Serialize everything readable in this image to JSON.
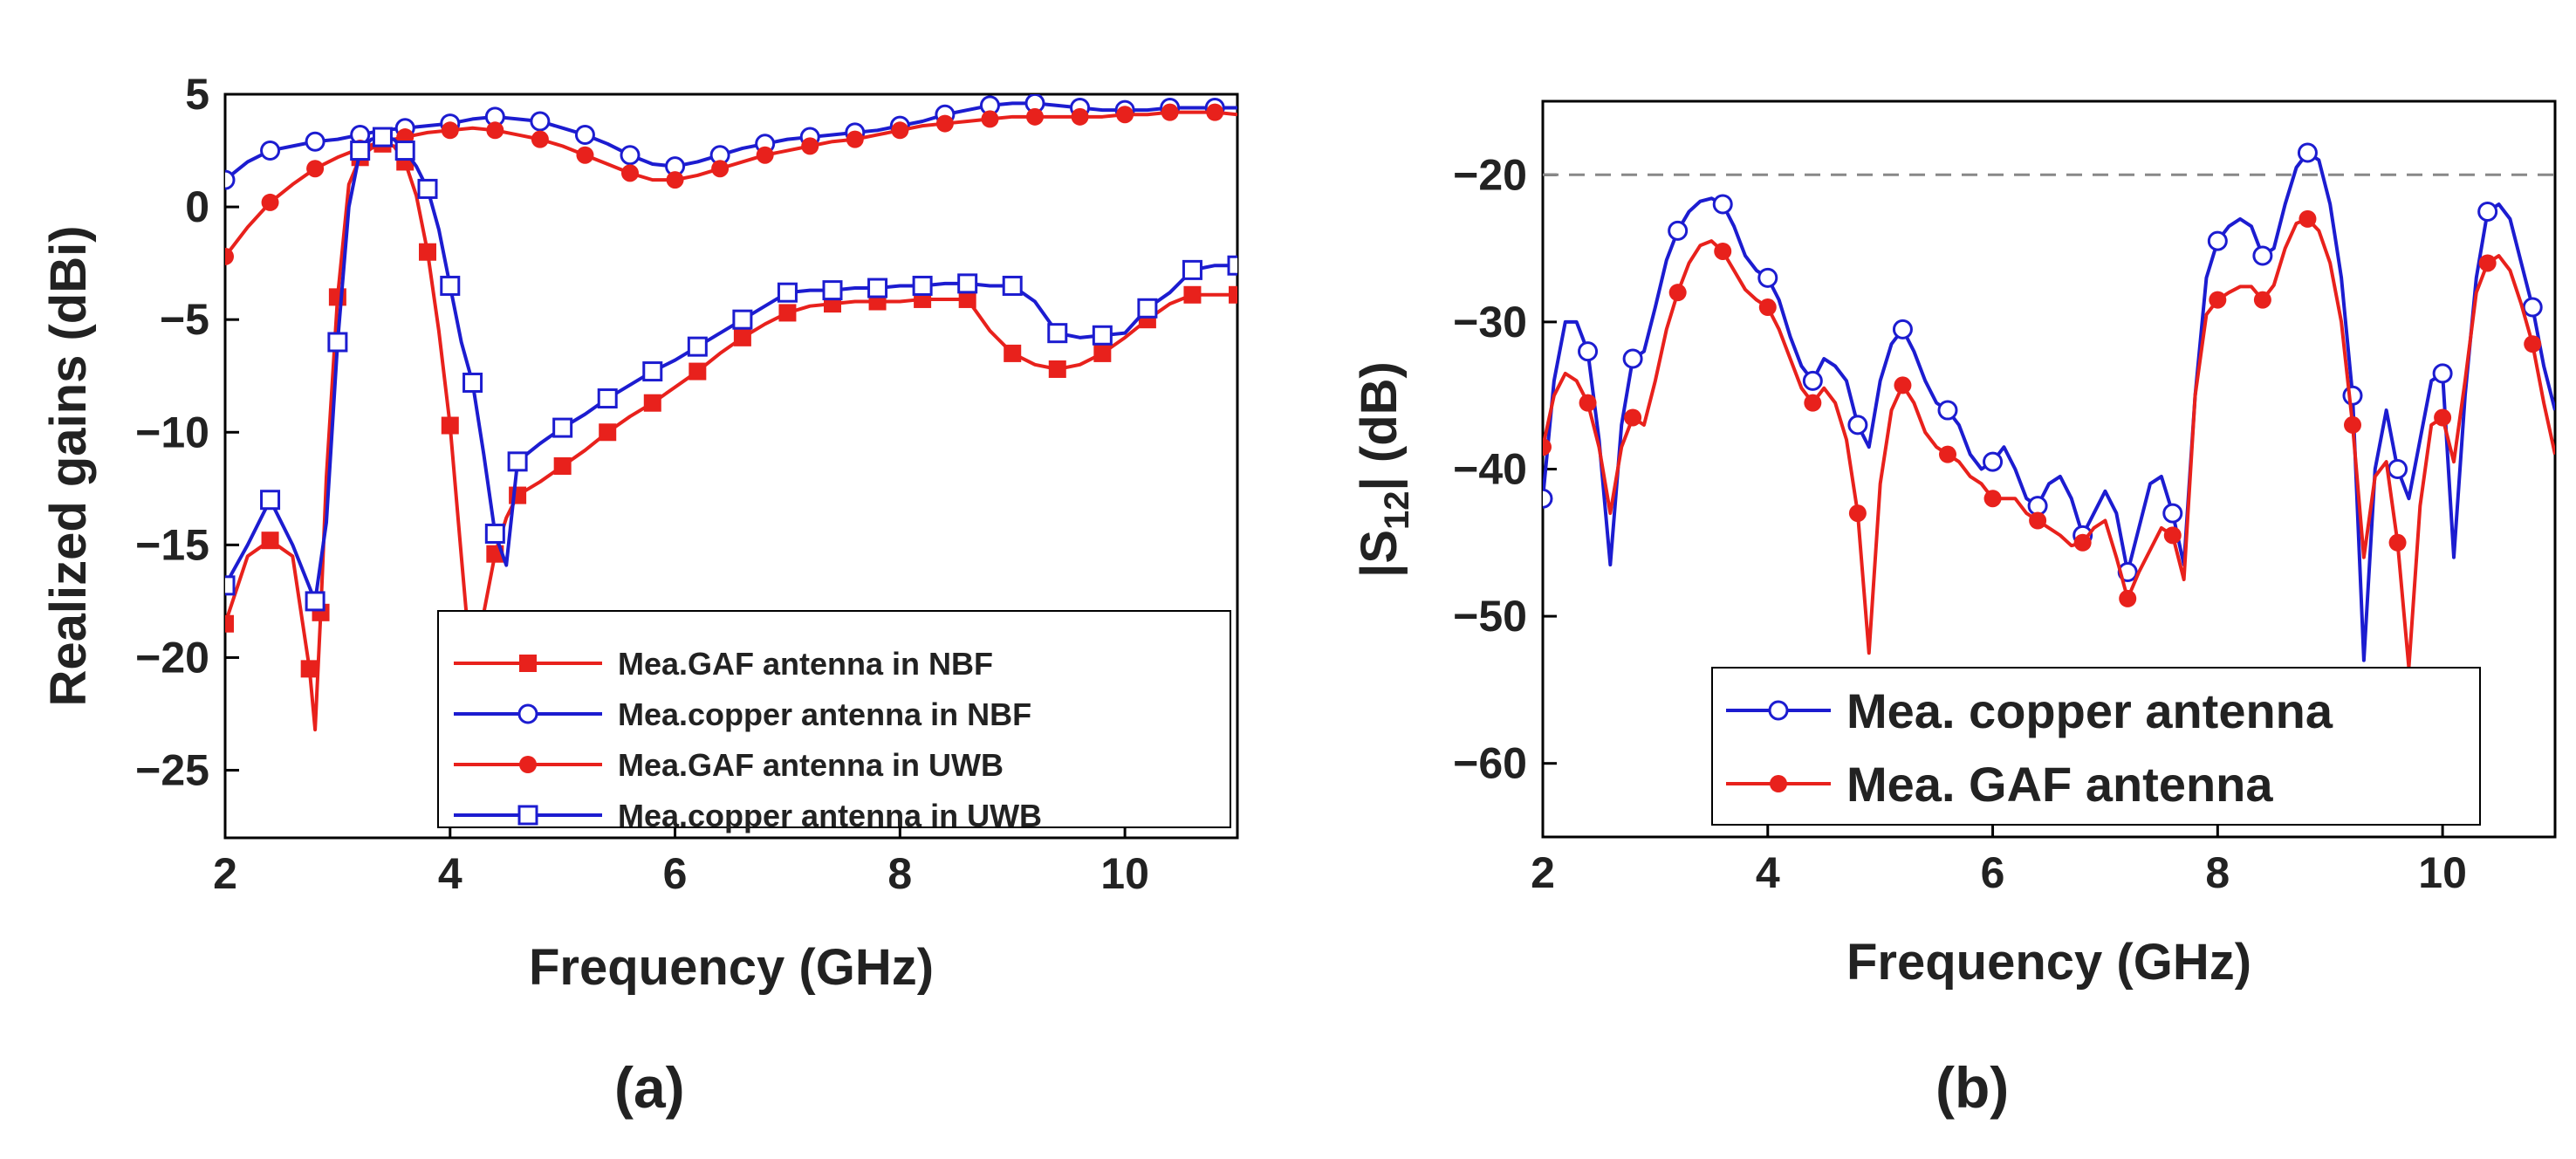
{
  "panels": {
    "a": {
      "caption": "(a)"
    },
    "b": {
      "caption": "(b)"
    }
  },
  "chart_data": [
    {
      "id": "a",
      "type": "line",
      "xlabel": "Frequency (GHz)",
      "ylabel": "Realized gains (dBi)",
      "xlim": [
        2,
        11
      ],
      "ylim": [
        -28,
        5
      ],
      "xticks": [
        2,
        4,
        6,
        8,
        10
      ],
      "yticks": [
        5,
        0,
        -5,
        -10,
        -15,
        -20,
        -25
      ],
      "grid": false,
      "legend_position": "bottom-right",
      "series": [
        {
          "name": "Mea.GAF antenna in NBF",
          "color": "#e8211c",
          "marker": "filled-square",
          "x": [
            2,
            2.2,
            2.4,
            2.6,
            2.75,
            2.8,
            2.85,
            2.9,
            3.0,
            3.1,
            3.2,
            3.3,
            3.4,
            3.5,
            3.6,
            3.7,
            3.8,
            3.9,
            4.0,
            4.1,
            4.2,
            4.3,
            4.4,
            4.5,
            4.6,
            4.8,
            5.0,
            5.2,
            5.4,
            5.6,
            5.8,
            6.0,
            6.2,
            6.4,
            6.6,
            6.8,
            7.0,
            7.2,
            7.4,
            7.6,
            7.8,
            8.0,
            8.2,
            8.4,
            8.6,
            8.8,
            9.0,
            9.2,
            9.4,
            9.6,
            9.8,
            10.0,
            10.2,
            10.4,
            10.6,
            10.8,
            11.0
          ],
          "y": [
            -18.5,
            -15.5,
            -14.8,
            -15.5,
            -20.5,
            -23.2,
            -18.0,
            -12.0,
            -4.0,
            1.0,
            2.2,
            2.6,
            2.8,
            2.7,
            2.0,
            0.5,
            -2.0,
            -5.5,
            -9.7,
            -15.5,
            -21.2,
            -18.0,
            -15.4,
            -13.8,
            -12.8,
            -12.2,
            -11.5,
            -10.8,
            -10.0,
            -9.3,
            -8.7,
            -8.0,
            -7.3,
            -6.5,
            -5.8,
            -5.2,
            -4.7,
            -4.4,
            -4.3,
            -4.2,
            -4.2,
            -4.2,
            -4.1,
            -4.1,
            -4.1,
            -5.5,
            -6.5,
            -7.0,
            -7.2,
            -7.0,
            -6.5,
            -5.8,
            -5.0,
            -4.3,
            -3.9,
            -3.9,
            -3.9
          ]
        },
        {
          "name": "Mea.copper antenna in NBF",
          "color": "#1c1cd0",
          "marker": "open-circle",
          "x": [
            2,
            2.2,
            2.4,
            2.6,
            2.8,
            3.0,
            3.2,
            3.4,
            3.6,
            3.8,
            4.0,
            4.2,
            4.4,
            4.6,
            4.8,
            5.0,
            5.2,
            5.4,
            5.6,
            5.8,
            6.0,
            6.2,
            6.4,
            6.6,
            6.8,
            7.0,
            7.2,
            7.4,
            7.6,
            7.8,
            8.0,
            8.2,
            8.4,
            8.6,
            8.8,
            9.0,
            9.2,
            9.4,
            9.6,
            9.8,
            10.0,
            10.2,
            10.4,
            10.6,
            10.8,
            11.0
          ],
          "y": [
            1.2,
            2.0,
            2.5,
            2.7,
            2.9,
            3.0,
            3.2,
            3.4,
            3.5,
            3.6,
            3.7,
            3.9,
            4.0,
            3.9,
            3.8,
            3.5,
            3.2,
            2.8,
            2.3,
            1.9,
            1.8,
            2.0,
            2.3,
            2.6,
            2.8,
            3.0,
            3.1,
            3.2,
            3.3,
            3.4,
            3.6,
            3.8,
            4.1,
            4.3,
            4.5,
            4.6,
            4.6,
            4.5,
            4.4,
            4.3,
            4.3,
            4.3,
            4.4,
            4.4,
            4.4,
            4.4
          ]
        },
        {
          "name": "Mea.GAF antenna in UWB",
          "color": "#e8211c",
          "marker": "filled-circle",
          "x": [
            2,
            2.2,
            2.4,
            2.6,
            2.8,
            3.0,
            3.2,
            3.4,
            3.6,
            3.8,
            4.0,
            4.2,
            4.4,
            4.6,
            4.8,
            5.0,
            5.2,
            5.4,
            5.6,
            5.8,
            6.0,
            6.2,
            6.4,
            6.6,
            6.8,
            7.0,
            7.2,
            7.4,
            7.6,
            7.8,
            8.0,
            8.2,
            8.4,
            8.6,
            8.8,
            9.0,
            9.2,
            9.4,
            9.6,
            9.8,
            10.0,
            10.2,
            10.4,
            10.6,
            10.8,
            11.0
          ],
          "y": [
            -2.2,
            -0.9,
            0.2,
            1.0,
            1.7,
            2.2,
            2.6,
            2.9,
            3.1,
            3.3,
            3.4,
            3.5,
            3.4,
            3.2,
            3.0,
            2.7,
            2.3,
            1.9,
            1.5,
            1.2,
            1.2,
            1.4,
            1.7,
            2.0,
            2.3,
            2.5,
            2.7,
            2.9,
            3.0,
            3.2,
            3.4,
            3.6,
            3.7,
            3.8,
            3.9,
            4.0,
            4.0,
            4.0,
            4.0,
            4.0,
            4.1,
            4.1,
            4.2,
            4.2,
            4.2,
            4.1
          ]
        },
        {
          "name": "Mea.copper antenna in UWB",
          "color": "#1c1cd0",
          "marker": "open-square",
          "x": [
            2,
            2.2,
            2.4,
            2.6,
            2.8,
            2.9,
            3.0,
            3.1,
            3.2,
            3.3,
            3.4,
            3.5,
            3.6,
            3.7,
            3.8,
            3.9,
            4.0,
            4.1,
            4.2,
            4.3,
            4.4,
            4.5,
            4.6,
            4.8,
            5.0,
            5.2,
            5.4,
            5.6,
            5.8,
            6.0,
            6.2,
            6.4,
            6.6,
            6.8,
            7.0,
            7.2,
            7.4,
            7.6,
            7.8,
            8.0,
            8.2,
            8.4,
            8.6,
            8.8,
            9.0,
            9.2,
            9.4,
            9.6,
            9.8,
            10.0,
            10.2,
            10.4,
            10.6,
            10.8,
            11.0
          ],
          "y": [
            -16.8,
            -15.0,
            -13.0,
            -15.0,
            -17.5,
            -14.0,
            -6.0,
            0.0,
            2.5,
            3.0,
            3.1,
            3.0,
            2.5,
            1.8,
            0.8,
            -1.0,
            -3.5,
            -6.0,
            -7.8,
            -11.0,
            -14.5,
            -15.9,
            -11.3,
            -10.5,
            -9.8,
            -9.2,
            -8.5,
            -7.9,
            -7.3,
            -6.8,
            -6.2,
            -5.6,
            -5.0,
            -4.4,
            -3.8,
            -3.7,
            -3.7,
            -3.6,
            -3.6,
            -3.5,
            -3.5,
            -3.4,
            -3.4,
            -3.5,
            -3.5,
            -4.2,
            -5.6,
            -5.8,
            -5.7,
            -5.6,
            -4.5,
            -3.8,
            -2.8,
            -2.6,
            -2.6
          ]
        }
      ]
    },
    {
      "id": "b",
      "type": "line",
      "xlabel": "Frequency (GHz)",
      "ylabel_main": "|S",
      "ylabel_sub": "12",
      "ylabel_tail": "| (dB)",
      "xlim": [
        2,
        11
      ],
      "ylim": [
        -65,
        -15
      ],
      "xticks": [
        2,
        4,
        6,
        8,
        10
      ],
      "yticks": [
        -20,
        -30,
        -40,
        -50,
        -60
      ],
      "grid": false,
      "reference_line": {
        "y": -20,
        "style": "dashed",
        "color": "#888888"
      },
      "legend_position": "bottom-right",
      "series": [
        {
          "name": "Mea. copper antenna",
          "color": "#1c1cd0",
          "marker": "open-circle",
          "x": [
            2.0,
            2.1,
            2.2,
            2.3,
            2.4,
            2.5,
            2.6,
            2.7,
            2.8,
            2.9,
            3.0,
            3.1,
            3.2,
            3.3,
            3.4,
            3.5,
            3.6,
            3.7,
            3.8,
            3.9,
            4.0,
            4.1,
            4.2,
            4.3,
            4.4,
            4.5,
            4.6,
            4.7,
            4.8,
            4.9,
            5.0,
            5.1,
            5.2,
            5.3,
            5.4,
            5.5,
            5.6,
            5.7,
            5.8,
            5.9,
            6.0,
            6.1,
            6.2,
            6.3,
            6.4,
            6.5,
            6.6,
            6.7,
            6.8,
            6.9,
            7.0,
            7.1,
            7.2,
            7.3,
            7.4,
            7.5,
            7.6,
            7.7,
            7.8,
            7.9,
            8.0,
            8.1,
            8.2,
            8.3,
            8.4,
            8.5,
            8.6,
            8.7,
            8.8,
            8.9,
            9.0,
            9.1,
            9.2,
            9.3,
            9.4,
            9.5,
            9.6,
            9.7,
            9.8,
            9.9,
            10.0,
            10.1,
            10.2,
            10.3,
            10.4,
            10.5,
            10.6,
            10.7,
            10.8,
            10.9,
            11.0
          ],
          "y": [
            -42,
            -34,
            -30,
            -30,
            -32,
            -38,
            -46.5,
            -37,
            -32.5,
            -32,
            -29,
            -25.8,
            -23.8,
            -22.5,
            -21.8,
            -21.6,
            -22,
            -23.5,
            -25.5,
            -26.5,
            -27,
            -28.5,
            -31,
            -33,
            -34,
            -32.5,
            -33,
            -34,
            -37,
            -38.5,
            -34,
            -31.5,
            -30.5,
            -32,
            -34,
            -35.5,
            -36,
            -37,
            -39,
            -40,
            -39.5,
            -38.5,
            -40,
            -42,
            -42.5,
            -41,
            -40.5,
            -42,
            -44.5,
            -43,
            -41.5,
            -43,
            -47,
            -44,
            -41,
            -40.5,
            -43,
            -46.5,
            -35,
            -27,
            -24.5,
            -23.5,
            -23,
            -23.5,
            -25.5,
            -25,
            -22,
            -19.5,
            -18.5,
            -19,
            -22,
            -27,
            -35,
            -53,
            -40,
            -36,
            -40,
            -42,
            -38,
            -34,
            -33.5,
            -46,
            -35,
            -27,
            -22.5,
            -22,
            -23,
            -26,
            -29,
            -33,
            -36
          ]
        },
        {
          "name": "Mea. GAF antenna",
          "color": "#e8211c",
          "marker": "filled-circle",
          "x": [
            2.0,
            2.1,
            2.2,
            2.3,
            2.4,
            2.5,
            2.6,
            2.7,
            2.8,
            2.9,
            3.0,
            3.1,
            3.2,
            3.3,
            3.4,
            3.5,
            3.6,
            3.7,
            3.8,
            3.9,
            4.0,
            4.1,
            4.2,
            4.3,
            4.4,
            4.5,
            4.6,
            4.7,
            4.8,
            4.9,
            5.0,
            5.1,
            5.2,
            5.3,
            5.4,
            5.5,
            5.6,
            5.7,
            5.8,
            5.9,
            6.0,
            6.1,
            6.2,
            6.3,
            6.4,
            6.5,
            6.6,
            6.7,
            6.8,
            6.9,
            7.0,
            7.1,
            7.2,
            7.3,
            7.4,
            7.5,
            7.6,
            7.7,
            7.8,
            7.9,
            8.0,
            8.1,
            8.2,
            8.3,
            8.4,
            8.5,
            8.6,
            8.7,
            8.8,
            8.9,
            9.0,
            9.1,
            9.2,
            9.3,
            9.4,
            9.5,
            9.6,
            9.7,
            9.8,
            9.9,
            10.0,
            10.1,
            10.2,
            10.3,
            10.4,
            10.5,
            10.6,
            10.7,
            10.8,
            10.9,
            11.0
          ],
          "y": [
            -38.5,
            -35,
            -33.5,
            -34,
            -35.5,
            -38.5,
            -43,
            -38.5,
            -36.5,
            -37,
            -34,
            -30.5,
            -28,
            -26,
            -24.8,
            -24.5,
            -25.2,
            -26.5,
            -27.8,
            -28.5,
            -29,
            -30.5,
            -32.5,
            -34.5,
            -35.5,
            -34.5,
            -35.5,
            -38,
            -43,
            -52.5,
            -41,
            -36,
            -34.3,
            -35.5,
            -37.5,
            -38.5,
            -39,
            -39.5,
            -40.5,
            -41,
            -42,
            -42,
            -42,
            -43,
            -43.5,
            -44,
            -44.5,
            -45.2,
            -45,
            -44,
            -43.5,
            -46,
            -48.8,
            -47,
            -45.5,
            -44,
            -44.5,
            -47.5,
            -35,
            -29.5,
            -28.5,
            -28,
            -27.6,
            -27.6,
            -28.5,
            -27.5,
            -25,
            -23.3,
            -23,
            -23.8,
            -26,
            -30,
            -37,
            -46,
            -40.5,
            -39.5,
            -45,
            -53.5,
            -42.5,
            -37,
            -36.5,
            -39.5,
            -34,
            -28,
            -26,
            -25.5,
            -26.5,
            -28.8,
            -31.5,
            -35.5,
            -39
          ]
        }
      ]
    }
  ]
}
